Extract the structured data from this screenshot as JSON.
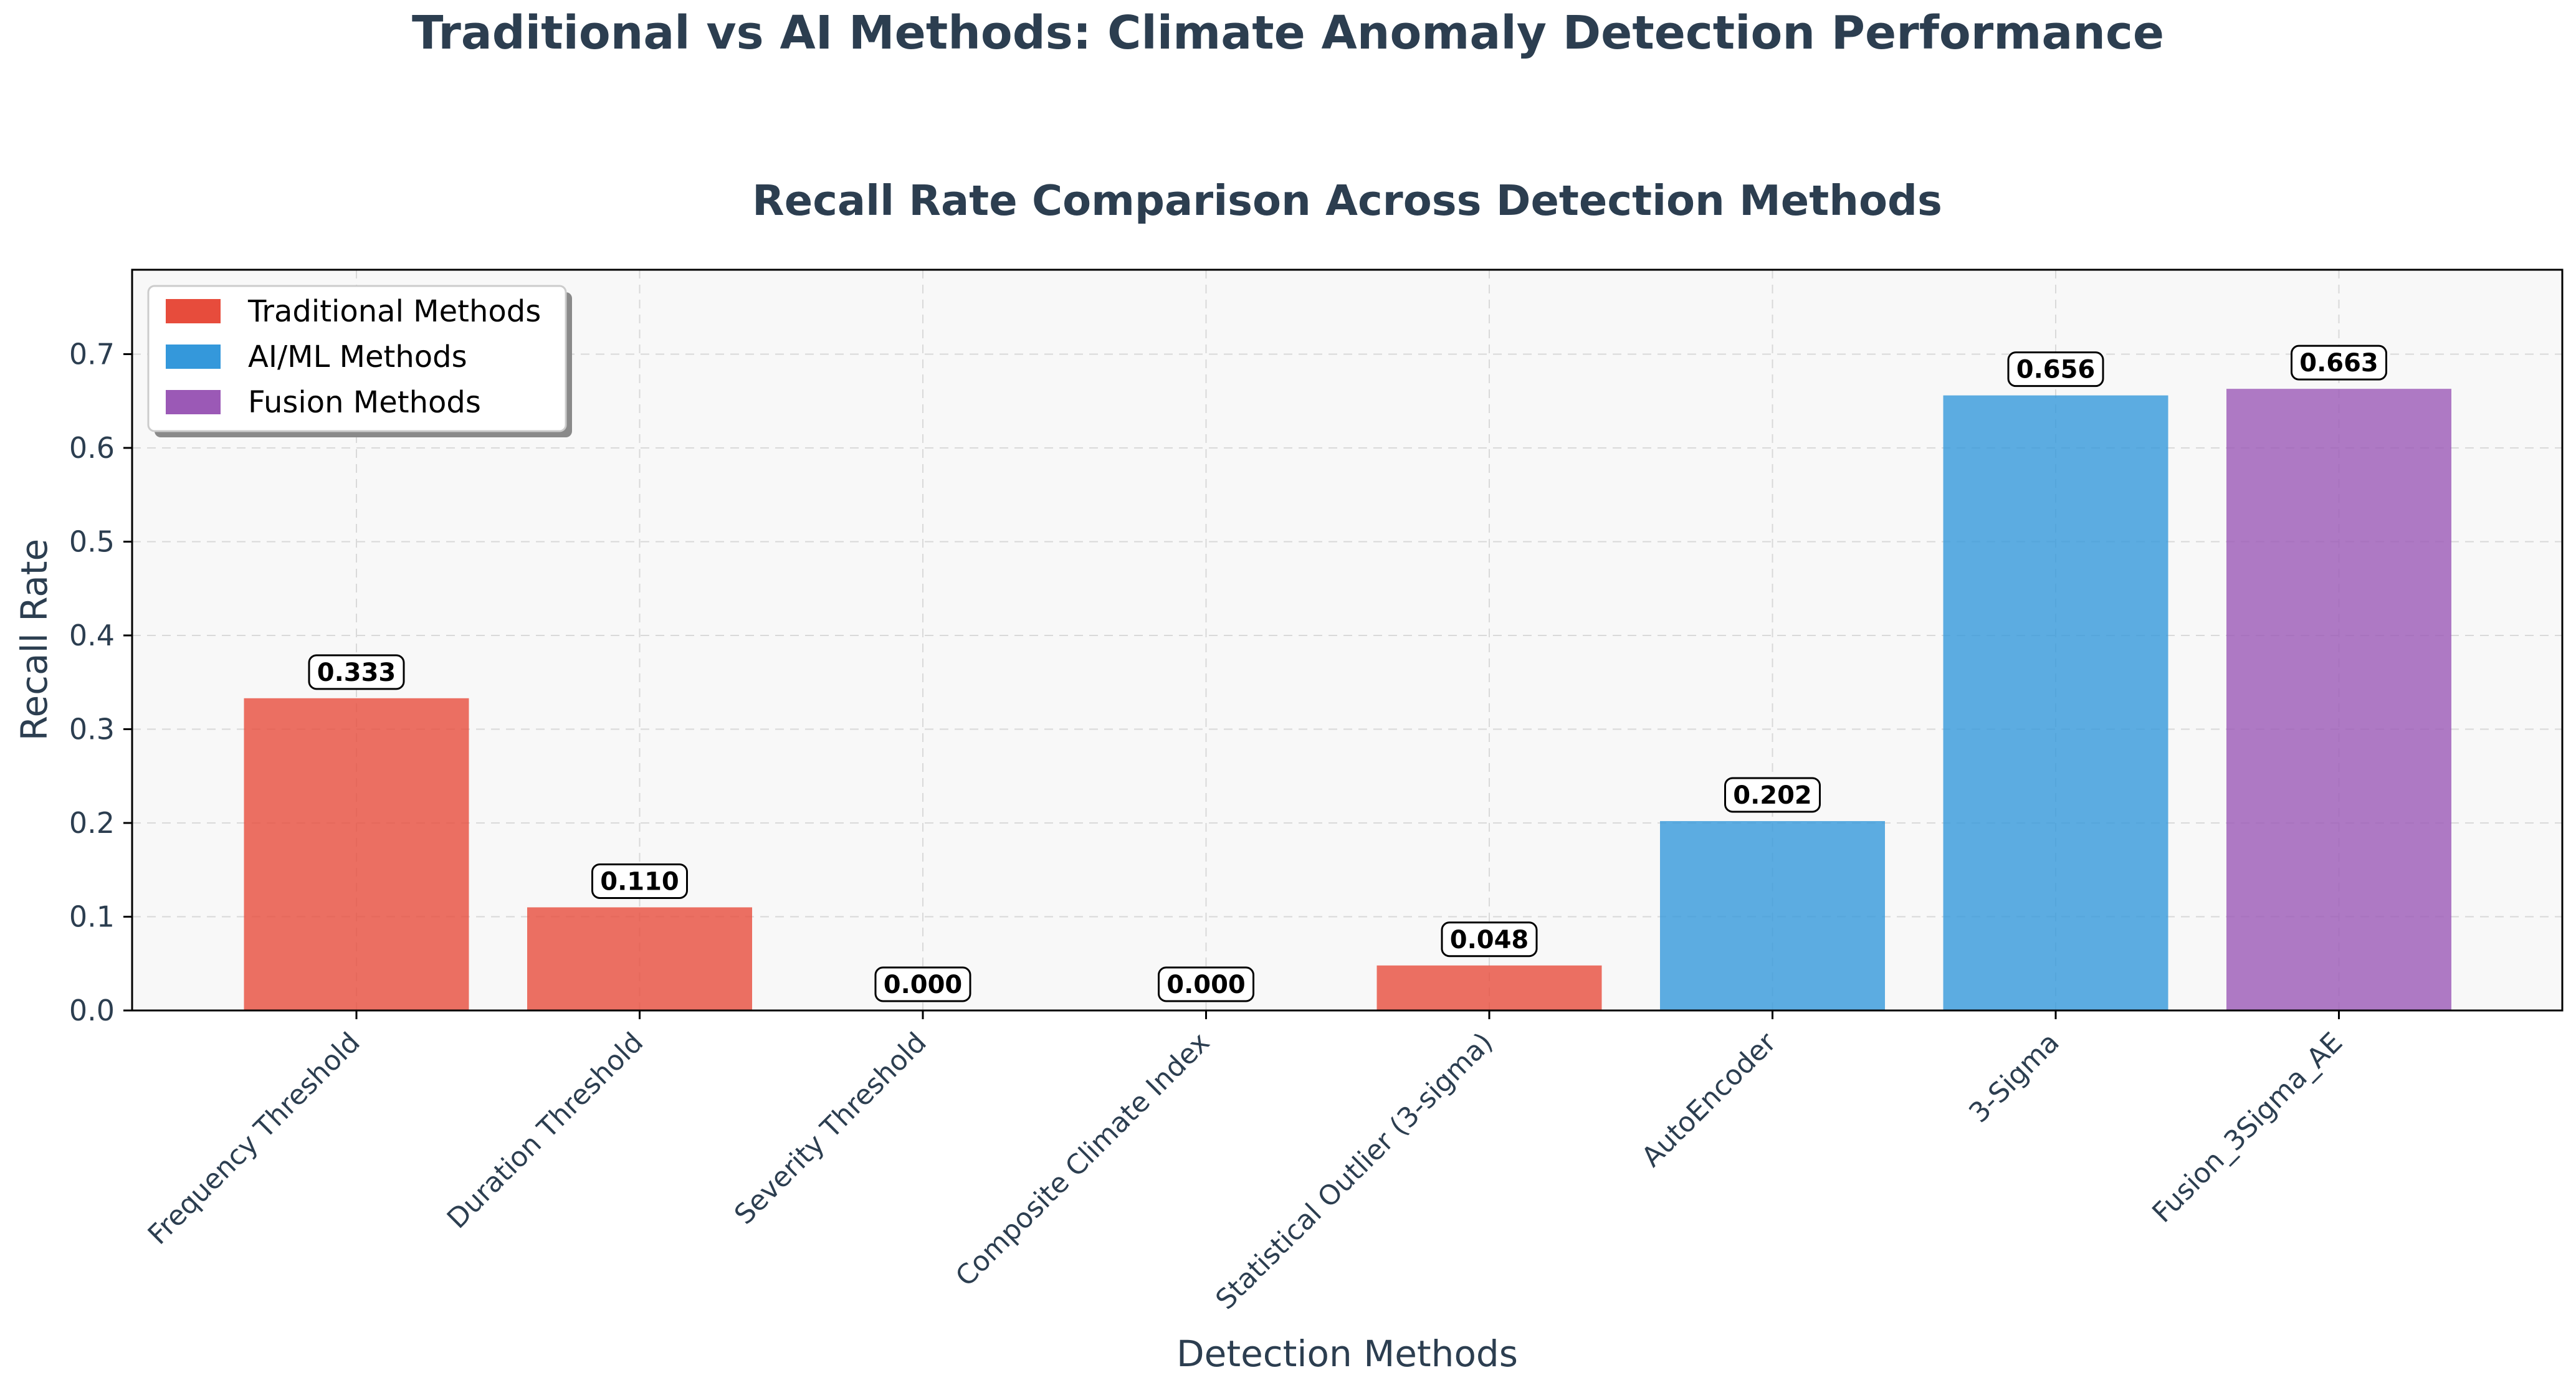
{
  "figure": {
    "title": "Traditional vs AI Methods: Climate Anomaly Detection Performance"
  },
  "chart_data": {
    "type": "bar",
    "title": "Recall Rate Comparison Across Detection Methods",
    "xlabel": "Detection Methods",
    "ylabel": "Recall Rate",
    "ylim": [
      0,
      0.79
    ],
    "yticks": [
      0.0,
      0.1,
      0.2,
      0.3,
      0.4,
      0.5,
      0.6,
      0.7
    ],
    "ytick_labels": [
      "0.0",
      "0.1",
      "0.2",
      "0.3",
      "0.4",
      "0.5",
      "0.6",
      "0.7"
    ],
    "grid": true,
    "legend_position": "top-left",
    "categories": [
      "Frequency Threshold",
      "Duration Threshold",
      "Severity Threshold",
      "Composite Climate Index",
      "Statistical Outlier (3-sigma)",
      "AutoEncoder",
      "3-Sigma",
      "Fusion_3Sigma_AE"
    ],
    "values": [
      0.333,
      0.11,
      0.0,
      0.0,
      0.048,
      0.202,
      0.656,
      0.663
    ],
    "value_labels": [
      "0.333",
      "0.110",
      "0.000",
      "0.000",
      "0.048",
      "0.202",
      "0.656",
      "0.663"
    ],
    "groups": [
      "Traditional Methods",
      "Traditional Methods",
      "Traditional Methods",
      "Traditional Methods",
      "Traditional Methods",
      "AI/ML Methods",
      "AI/ML Methods",
      "Fusion Methods"
    ],
    "legend": [
      {
        "label": "Traditional Methods",
        "color": "#e74c3c"
      },
      {
        "label": "AI/ML Methods",
        "color": "#3498db"
      },
      {
        "label": "Fusion Methods",
        "color": "#9b59b6"
      }
    ],
    "colors": {
      "Traditional Methods": "#e74c3c",
      "AI/ML Methods": "#3498db",
      "Fusion Methods": "#9b59b6",
      "plot_background": "#f8f8f8",
      "text": "#2c3e50"
    }
  }
}
